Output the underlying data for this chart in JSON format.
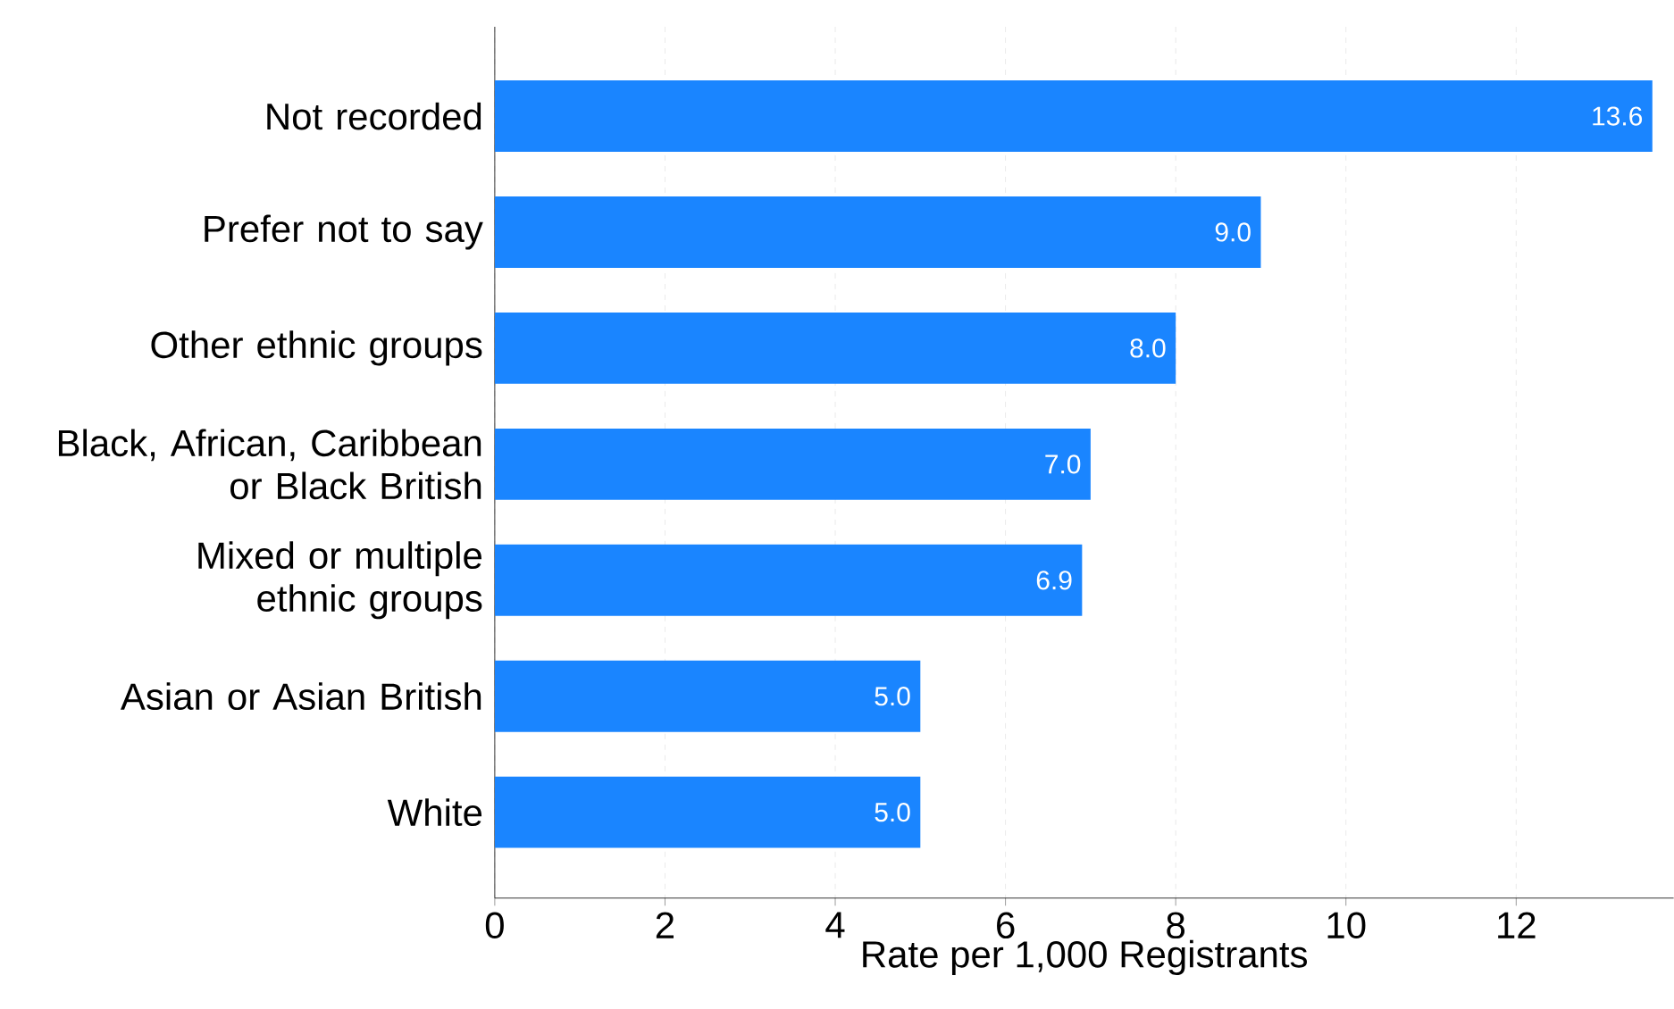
{
  "chart_data": {
    "type": "bar",
    "orientation": "horizontal",
    "xlabel": "Rate per 1,000 Registrants",
    "categories": [
      "Not recorded",
      "Prefer not to say",
      "Other ethnic groups",
      "Black, African, Caribbean or Black British",
      "Mixed or multiple ethnic groups",
      "Asian or Asian British",
      "White"
    ],
    "values": [
      13.6,
      9.0,
      8.0,
      7.0,
      6.9,
      5.0,
      5.0
    ],
    "value_labels": [
      "13.6",
      "9.0",
      "8.0",
      "7.0",
      "6.9",
      "5.0",
      "5.0"
    ],
    "color": "#1a85ff",
    "xlim": [
      0,
      13.85
    ],
    "xticks": [
      0,
      2,
      4,
      6,
      8,
      10,
      12
    ],
    "grid": "x"
  }
}
